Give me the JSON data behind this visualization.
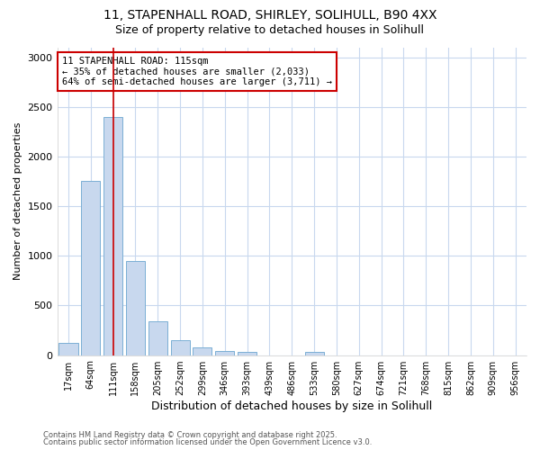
{
  "title_line1": "11, STAPENHALL ROAD, SHIRLEY, SOLIHULL, B90 4XX",
  "title_line2": "Size of property relative to detached houses in Solihull",
  "xlabel": "Distribution of detached houses by size in Solihull",
  "ylabel": "Number of detached properties",
  "footer_line1": "Contains HM Land Registry data © Crown copyright and database right 2025.",
  "footer_line2": "Contains public sector information licensed under the Open Government Licence v3.0.",
  "categories": [
    "17sqm",
    "64sqm",
    "111sqm",
    "158sqm",
    "205sqm",
    "252sqm",
    "299sqm",
    "346sqm",
    "393sqm",
    "439sqm",
    "486sqm",
    "533sqm",
    "580sqm",
    "627sqm",
    "674sqm",
    "721sqm",
    "768sqm",
    "815sqm",
    "862sqm",
    "909sqm",
    "956sqm"
  ],
  "values": [
    120,
    1750,
    2400,
    950,
    340,
    150,
    80,
    40,
    30,
    0,
    0,
    30,
    0,
    0,
    0,
    0,
    0,
    0,
    0,
    0,
    0
  ],
  "bar_color": "#c8d8ee",
  "bar_edge_color": "#7bafd4",
  "vline_x": 2,
  "vline_color": "#cc0000",
  "annotation_title": "11 STAPENHALL ROAD: 115sqm",
  "annotation_line1": "← 35% of detached houses are smaller (2,033)",
  "annotation_line2": "64% of semi-detached houses are larger (3,711) →",
  "annotation_box_color": "#cc0000",
  "ylim": [
    0,
    3100
  ],
  "yticks": [
    0,
    500,
    1000,
    1500,
    2000,
    2500,
    3000
  ],
  "bg_color": "#ffffff",
  "plot_bg_color": "#ffffff",
  "grid_color": "#c8d8ee"
}
